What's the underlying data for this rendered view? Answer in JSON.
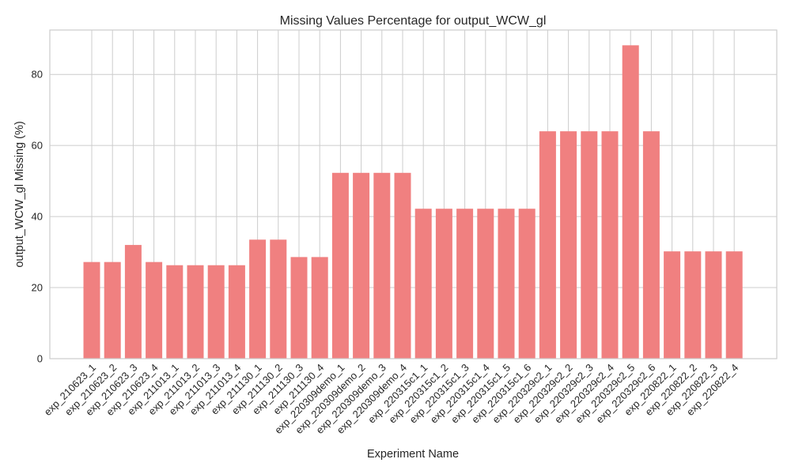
{
  "chart_data": {
    "type": "bar",
    "title": "Missing Values Percentage for output_WCW_gl",
    "xlabel": "Experiment Name",
    "ylabel": "output_WCW_gl Missing (%)",
    "ylim": [
      0,
      92.5
    ],
    "yticks": [
      "0",
      "20",
      "40",
      "60",
      "80"
    ],
    "grid": true,
    "bar_color": "#f08080",
    "categories": [
      "exp_210623_1",
      "exp_210623_2",
      "exp_210623_3",
      "exp_210623_4",
      "exp_211013_1",
      "exp_211013_2",
      "exp_211013_3",
      "exp_211013_4",
      "exp_211130_1",
      "exp_211130_2",
      "exp_211130_3",
      "exp_211130_4",
      "exp_220309demo_1",
      "exp_220309demo_2",
      "exp_220309demo_3",
      "exp_220309demo_4",
      "exp_220315c1_1",
      "exp_220315c1_2",
      "exp_220315c1_3",
      "exp_220315c1_4",
      "exp_220315c1_5",
      "exp_220315c1_6",
      "exp_220329c2_1",
      "exp_220329c2_2",
      "exp_220329c2_3",
      "exp_220329c2_4",
      "exp_220329c2_5",
      "exp_220329c2_6",
      "exp_220822_1",
      "exp_220822_2",
      "exp_220822_3",
      "exp_220822_4"
    ],
    "values": [
      27.2,
      27.2,
      32.0,
      27.2,
      26.3,
      26.3,
      26.3,
      26.3,
      33.5,
      33.5,
      28.6,
      28.6,
      52.3,
      52.3,
      52.3,
      52.3,
      42.2,
      42.2,
      42.2,
      42.2,
      42.2,
      42.2,
      64.0,
      64.0,
      64.0,
      64.0,
      88.2,
      64.0,
      30.2,
      30.2,
      30.2,
      30.2
    ]
  }
}
